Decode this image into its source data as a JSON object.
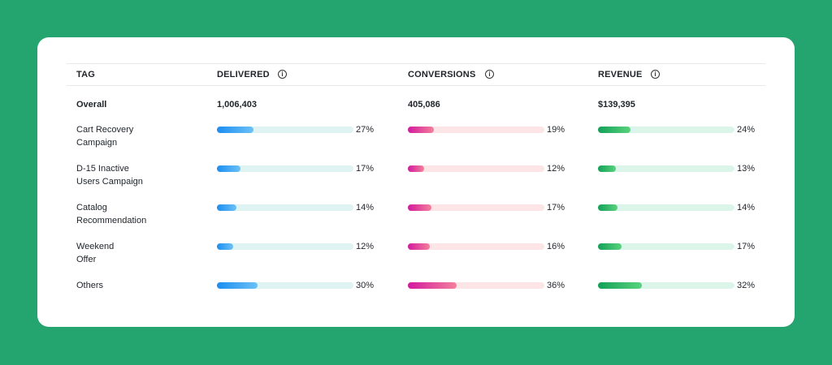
{
  "table": {
    "headers": [
      "TAG",
      "DELIVERED",
      "CONVERSIONS",
      "REVENUE"
    ],
    "overall": {
      "label": "Overall",
      "values": [
        "1,006,403",
        "405,086",
        "$139,395"
      ]
    },
    "rows": [
      {
        "name": [
          "Cart Recovery",
          "Campaign"
        ],
        "values": [
          {
            "value": 27,
            "label": "27%"
          },
          {
            "value": 19,
            "label": "19%"
          },
          {
            "value": 24,
            "label": "24%"
          }
        ]
      },
      {
        "name": [
          "D-15 Inactive",
          "Users Campaign"
        ],
        "values": [
          {
            "value": 17,
            "label": "17%"
          },
          {
            "value": 12,
            "label": "12%"
          },
          {
            "value": 13,
            "label": "13%"
          }
        ]
      },
      {
        "name": [
          "Catalog",
          "Recommendation"
        ],
        "values": [
          {
            "value": 14,
            "label": "14%"
          },
          {
            "value": 17,
            "label": "17%"
          },
          {
            "value": 14,
            "label": "14%"
          }
        ]
      },
      {
        "name": [
          "Weekend",
          "Offer"
        ],
        "values": [
          {
            "value": 12,
            "label": "12%"
          },
          {
            "value": 16,
            "label": "16%"
          },
          {
            "value": 17,
            "label": "17%"
          }
        ]
      },
      {
        "name": [
          "Others"
        ],
        "values": [
          {
            "value": 30,
            "label": "30%"
          },
          {
            "value": 36,
            "label": "36%"
          },
          {
            "value": 32,
            "label": "32%"
          }
        ]
      }
    ]
  }
}
